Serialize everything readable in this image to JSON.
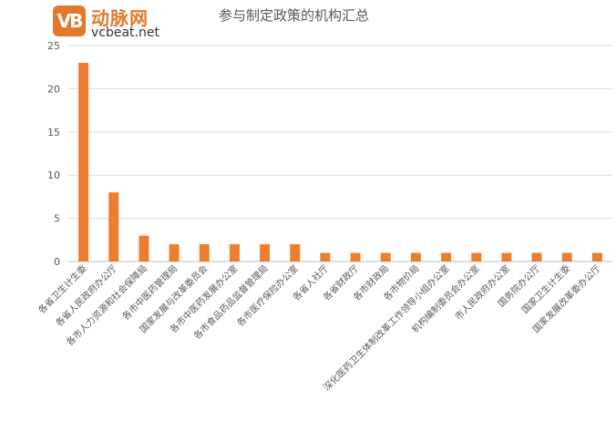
{
  "logo": {
    "mark": "VB",
    "cn": "动脉网",
    "en": "vcbeat.net"
  },
  "chart_data": {
    "type": "bar",
    "title": "参与制定政策的机构汇总",
    "xlabel": "",
    "ylabel": "",
    "ylim": [
      0,
      25
    ],
    "yticks": [
      0,
      5,
      10,
      15,
      20,
      25
    ],
    "grid": true,
    "legend": "none",
    "bar_color": "#ed7d31",
    "categories": [
      "各省卫生计生委",
      "各省人民政府办公厅",
      "各市人力资源和社会保障局",
      "各市中医药管理局",
      "国家发展与改革委员会",
      "各市中医药发展办公室",
      "各市食品药品监督管理局",
      "各市医疗保险办公室",
      "各省人社厅",
      "各省财政厅",
      "各市财政局",
      "各市物价局",
      "深化医药卫生体制改革工作领导小组办公室",
      "机构编制委员会办公室",
      "市人民政府办公室",
      "国务院办公厅",
      "国家卫生计生委",
      "国家发展改革委办公厅"
    ],
    "values": [
      23,
      8,
      3,
      2,
      2,
      2,
      2,
      2,
      1,
      1,
      1,
      1,
      1,
      1,
      1,
      1,
      1,
      1
    ]
  }
}
